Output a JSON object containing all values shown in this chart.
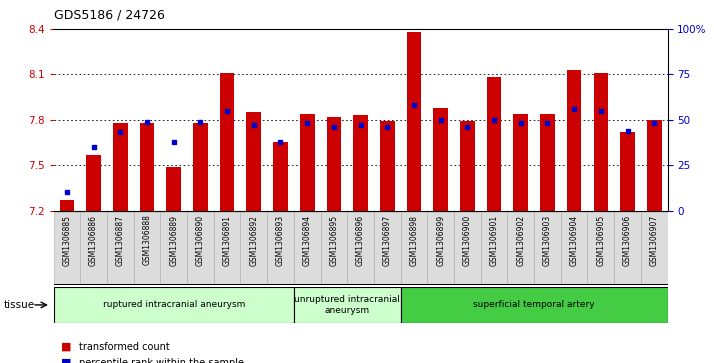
{
  "title": "GDS5186 / 24726",
  "samples": [
    "GSM1306885",
    "GSM1306886",
    "GSM1306887",
    "GSM1306888",
    "GSM1306889",
    "GSM1306890",
    "GSM1306891",
    "GSM1306892",
    "GSM1306893",
    "GSM1306894",
    "GSM1306895",
    "GSM1306896",
    "GSM1306897",
    "GSM1306898",
    "GSM1306899",
    "GSM1306900",
    "GSM1306901",
    "GSM1306902",
    "GSM1306903",
    "GSM1306904",
    "GSM1306905",
    "GSM1306906",
    "GSM1306907"
  ],
  "transformed_count": [
    7.27,
    7.57,
    7.78,
    7.78,
    7.49,
    7.78,
    8.11,
    7.85,
    7.65,
    7.84,
    7.82,
    7.83,
    7.79,
    8.38,
    7.88,
    7.79,
    8.08,
    7.84,
    7.84,
    8.13,
    8.11,
    7.72,
    7.8
  ],
  "percentile_rank": [
    10,
    35,
    43,
    49,
    38,
    49,
    55,
    47,
    38,
    48,
    46,
    47,
    46,
    58,
    50,
    46,
    50,
    48,
    48,
    56,
    55,
    44,
    48
  ],
  "group_starts": [
    0,
    9,
    13
  ],
  "group_ends": [
    9,
    13,
    23
  ],
  "group_labels": [
    "ruptured intracranial aneurysm",
    "unruptured intracranial\naneurysm",
    "superficial temporal artery"
  ],
  "group_colors": [
    "#ccffcc",
    "#ccffcc",
    "#44cc44"
  ],
  "bar_color": "#cc0000",
  "percentile_color": "#0000cc",
  "ylim_left": [
    7.2,
    8.4
  ],
  "ylim_right": [
    0,
    100
  ],
  "yticks_left": [
    7.2,
    7.5,
    7.8,
    8.1,
    8.4
  ],
  "ytick_labels_left": [
    "7.2",
    "7.5",
    "7.8",
    "8.1",
    "8.4"
  ],
  "yticks_right": [
    0,
    25,
    50,
    75,
    100
  ],
  "ytick_labels_right": [
    "0",
    "25",
    "50",
    "75",
    "100%"
  ],
  "grid_lines": [
    7.5,
    7.8,
    8.1
  ],
  "bar_width": 0.55,
  "tissue_label": "tissue",
  "legend_items": [
    {
      "color": "#cc0000",
      "label": "transformed count"
    },
    {
      "color": "#0000cc",
      "label": "percentile rank within the sample"
    }
  ],
  "background_color": "#ffffff"
}
